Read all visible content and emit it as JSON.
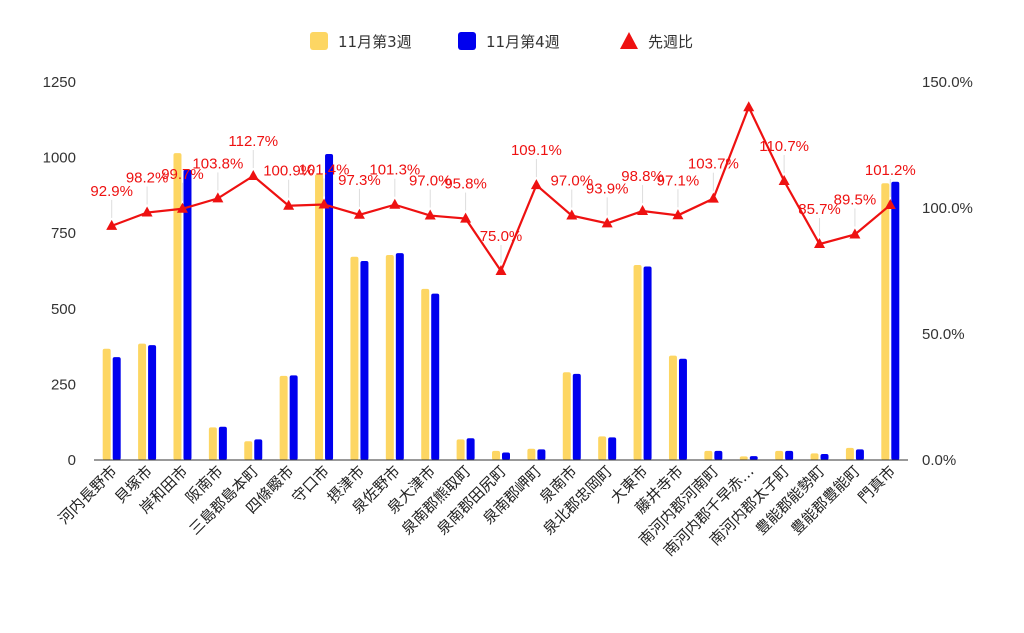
{
  "chart_data": {
    "type": "bar",
    "categories": [
      "河内長野市",
      "貝塚市",
      "岸和田市",
      "阪南市",
      "三島郡島本町",
      "四條畷市",
      "守口市",
      "摂津市",
      "泉佐野市",
      "泉大津市",
      "泉南郡熊取町",
      "泉南郡田尻町",
      "泉南郡岬町",
      "泉南市",
      "泉北郡忠岡町",
      "大東市",
      "藤井寺市",
      "南河内郡河南町",
      "南河内郡千早赤…",
      "南河内郡太子町",
      "豊能郡能勢町",
      "豊能郡豊能町",
      "門真市"
    ],
    "series": [
      {
        "name": "11月第3週",
        "type": "bar",
        "axis": "left",
        "color": "#FDD663",
        "values": [
          368,
          385,
          1015,
          108,
          62,
          278,
          945,
          672,
          678,
          566,
          68,
          30,
          37,
          290,
          78,
          645,
          345,
          30,
          12,
          30,
          22,
          40,
          915
        ]
      },
      {
        "name": "11月第4週",
        "type": "bar",
        "axis": "left",
        "color": "#0000EE",
        "values": [
          340,
          380,
          960,
          110,
          68,
          280,
          1012,
          658,
          684,
          550,
          72,
          25,
          35,
          285,
          75,
          640,
          335,
          30,
          13,
          30,
          20,
          35,
          920
        ]
      },
      {
        "name": "先週比",
        "type": "line",
        "axis": "right",
        "color": "#EE1111",
        "values": [
          92.9,
          98.2,
          99.7,
          103.8,
          112.7,
          100.9,
          101.4,
          97.3,
          101.3,
          97.0,
          95.8,
          75.0,
          109.1,
          97.0,
          93.9,
          98.8,
          97.1,
          103.7,
          140.0,
          110.7,
          85.7,
          89.5,
          101.2
        ],
        "labels": [
          "92.9%",
          "98.2%",
          "99.7%",
          "103.8%",
          "112.7%",
          "100.9%",
          "101.4%",
          "97.3%",
          "101.3%",
          "97.0%",
          "95.8%",
          "75.0%",
          "109.1%",
          "97.0%",
          "93.9%",
          "98.8%",
          "97.1%",
          "103.7%",
          "",
          "110.7%",
          "85.7%",
          "89.5%",
          "101.2%"
        ]
      }
    ],
    "y_left": {
      "ylim": [
        0,
        1250
      ],
      "ticks": [
        "0",
        "250",
        "500",
        "750",
        "1000",
        "1250"
      ]
    },
    "y_right": {
      "ylim": [
        0,
        150
      ],
      "ticks": [
        "0.0%",
        "50.0%",
        "100.0%",
        "150.0%"
      ]
    },
    "legend": {
      "position": "top-center",
      "items": [
        "11月第3週",
        "11月第4週",
        "先週比"
      ]
    },
    "grid": false
  }
}
